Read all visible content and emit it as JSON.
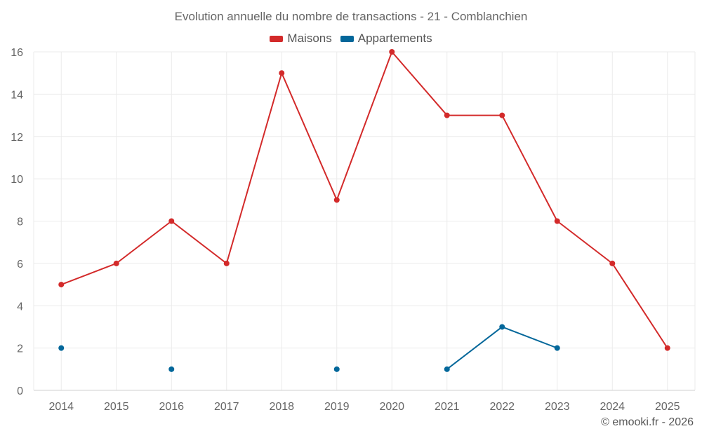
{
  "chart_data": {
    "type": "line",
    "title": "Evolution annuelle du nombre de transactions - 21 - Comblanchien",
    "categories": [
      "2014",
      "2015",
      "2016",
      "2017",
      "2018",
      "2019",
      "2020",
      "2021",
      "2022",
      "2023",
      "2024",
      "2025"
    ],
    "series": [
      {
        "name": "Maisons",
        "color": "#d32a2a",
        "values": [
          5,
          6,
          8,
          6,
          15,
          9,
          16,
          13,
          13,
          8,
          6,
          2
        ]
      },
      {
        "name": "Appartements",
        "color": "#03679a",
        "values": [
          2,
          null,
          1,
          null,
          null,
          1,
          null,
          1,
          3,
          2,
          null,
          null
        ]
      }
    ],
    "ylim": [
      0,
      16
    ],
    "yticks": [
      0,
      2,
      4,
      6,
      8,
      10,
      12,
      14,
      16
    ],
    "xlabel": "",
    "ylabel": "",
    "grid": true,
    "legend_position": "top-center"
  },
  "footer": {
    "credit": "© emooki.fr - 2026"
  }
}
